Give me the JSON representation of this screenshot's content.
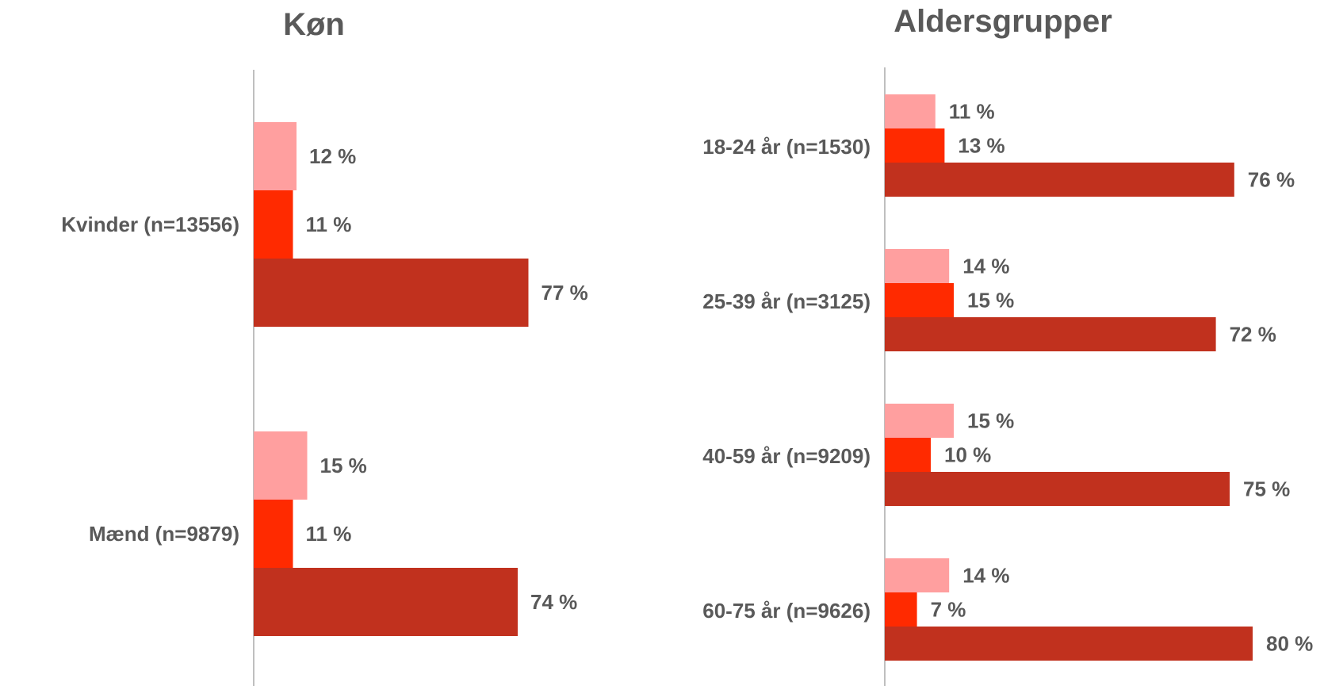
{
  "colors": {
    "series_1": "#ff9f9f",
    "series_2": "#ff2a00",
    "series_3": "#c1311e",
    "text": "#595959",
    "axis": "#bfbfbf"
  },
  "chart_data": [
    {
      "type": "bar",
      "orientation": "horizontal",
      "title": "Køn",
      "categories": [
        "Kvinder (n=13556)",
        "Mænd (n=9879)"
      ],
      "series": [
        {
          "values": [
            12,
            15
          ]
        },
        {
          "values": [
            11,
            11
          ]
        },
        {
          "values": [
            77,
            74
          ]
        }
      ],
      "value_labels": [
        [
          "12 %",
          "11 %",
          "77 %"
        ],
        [
          "15 %",
          "11 %",
          "74 %"
        ]
      ],
      "unit": "%",
      "grid": false,
      "legend": "none"
    },
    {
      "type": "bar",
      "orientation": "horizontal",
      "title": "Aldersgrupper",
      "categories": [
        "18-24 år (n=1530)",
        "25-39 år (n=3125)",
        "40-59 år (n=9209)",
        "60-75 år (n=9626)"
      ],
      "series": [
        {
          "values": [
            11,
            14,
            15,
            14
          ]
        },
        {
          "values": [
            13,
            15,
            10,
            7
          ]
        },
        {
          "values": [
            76,
            72,
            75,
            80
          ]
        }
      ],
      "value_labels": [
        [
          "11 %",
          "13 %",
          "76 %"
        ],
        [
          "14 %",
          "15 %",
          "72 %"
        ],
        [
          "15 %",
          "10 %",
          "75 %"
        ],
        [
          "14 %",
          "7 %",
          "80 %"
        ]
      ],
      "unit": "%",
      "grid": false,
      "legend": "none"
    }
  ]
}
